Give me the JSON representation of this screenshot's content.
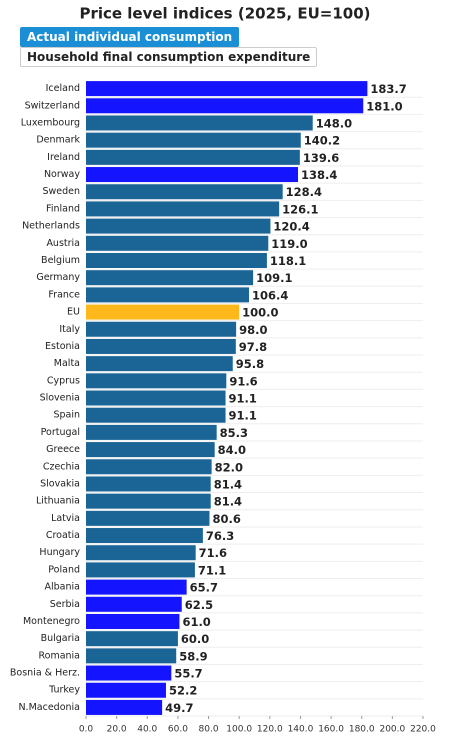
{
  "controls": [
    "Actual individual consumption",
    "Household final consumption expenditure"
  ],
  "chart_data": {
    "type": "barh",
    "title": "Price level indices (2025, EU=100)",
    "categories": [
      "Iceland",
      "Switzerland",
      "Luxembourg",
      "Denmark",
      "Ireland",
      "Norway",
      "Sweden",
      "Finland",
      "Netherlands",
      "Austria",
      "Belgium",
      "Germany",
      "France",
      "EU",
      "Italy",
      "Estonia",
      "Malta",
      "Cyprus",
      "Slovenia",
      "Spain",
      "Portugal",
      "Greece",
      "Czechia",
      "Slovakia",
      "Lithuania",
      "Latvia",
      "Croatia",
      "Hungary",
      "Poland",
      "Albania",
      "Serbia",
      "Montenegro",
      "Bulgaria",
      "Romania",
      "Bosnia & Herz.",
      "Turkey",
      "N.Macedonia"
    ],
    "values": [
      183.7,
      181.0,
      148.0,
      140.2,
      139.6,
      138.4,
      128.4,
      126.1,
      120.4,
      119.0,
      118.1,
      109.1,
      106.4,
      100.0,
      98.0,
      97.8,
      95.8,
      91.6,
      91.1,
      91.1,
      85.3,
      84.0,
      82.0,
      81.4,
      81.4,
      80.6,
      76.3,
      71.6,
      71.1,
      65.7,
      62.5,
      61.0,
      60.0,
      58.9,
      55.7,
      52.2,
      49.7
    ],
    "value_labels": [
      "183.7",
      "181.0",
      "148.0",
      "140.2",
      "139.6",
      "138.4",
      "128.4",
      "126.1",
      "120.4",
      "119.0",
      "118.1",
      "109.1",
      "106.4",
      "100.0",
      "98.0",
      "97.8",
      "95.8",
      "91.6",
      "91.1",
      "91.1",
      "85.3",
      "84.0",
      "82.0",
      "81.4",
      "81.4",
      "80.6",
      "76.3",
      "71.6",
      "71.1",
      "65.7",
      "62.5",
      "61.0",
      "60.0",
      "58.9",
      "55.7",
      "52.2",
      "49.7"
    ],
    "colors": [
      "#1414ff",
      "#1414ff",
      "#1a6496",
      "#1a6496",
      "#1a6496",
      "#1414ff",
      "#1a6496",
      "#1a6496",
      "#1a6496",
      "#1a6496",
      "#1a6496",
      "#1a6496",
      "#1a6496",
      "#ffb81c",
      "#1a6496",
      "#1a6496",
      "#1a6496",
      "#1a6496",
      "#1a6496",
      "#1a6496",
      "#1a6496",
      "#1a6496",
      "#1a6496",
      "#1a6496",
      "#1a6496",
      "#1a6496",
      "#1a6496",
      "#1a6496",
      "#1a6496",
      "#1414ff",
      "#1414ff",
      "#1414ff",
      "#1a6496",
      "#1a6496",
      "#1414ff",
      "#1414ff",
      "#1414ff"
    ],
    "xlim": [
      0,
      220
    ],
    "xticks": [
      {
        "value": 0,
        "label": "0.0"
      },
      {
        "value": 20,
        "label": "20.0"
      },
      {
        "value": 40,
        "label": "40.0"
      },
      {
        "value": 60,
        "label": "60.0"
      },
      {
        "value": 80,
        "label": "80.0"
      },
      {
        "value": 100,
        "label": "100.0"
      },
      {
        "value": 120,
        "label": "120.0"
      },
      {
        "value": 140,
        "label": "140.0"
      },
      {
        "value": 160,
        "label": "160.0"
      },
      {
        "value": 180,
        "label": "180.0"
      },
      {
        "value": 200,
        "label": "200.0"
      },
      {
        "value": 220,
        "label": "220.0"
      }
    ]
  }
}
